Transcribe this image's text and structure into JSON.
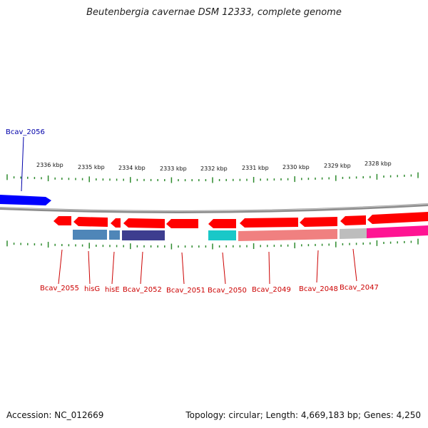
{
  "title": "Beutenbergia cavernae DSM 12333, complete genome",
  "footer": {
    "accession": "Accession: NC_012669",
    "info": "Topology: circular; Length: 4,669,183 bp; Genes: 4,250"
  },
  "colors": {
    "backbone": "#8c8c8c",
    "tick": "#2e8b2e",
    "gene_red": "#ff0000",
    "label_red": "#cc0000",
    "label_blue": "#0000aa",
    "blue_gene": "#0000ff",
    "steelblue": "#4f86b8",
    "navy": "#3d3d8f",
    "cyan": "#19c8c8",
    "salmon": "#f08080",
    "gray": "#bdbdbd",
    "magenta": "#ff1493"
  },
  "kbp_labels": [
    "2336 kbp",
    "2335 kbp",
    "2334 kbp",
    "2333 kbp",
    "2332 kbp",
    "2331 kbp",
    "2330 kbp",
    "2329 kbp",
    "2328 kbp"
  ],
  "gene_labels": {
    "top": [
      "Bcav_2056"
    ],
    "bottom": [
      "Bcav_2055",
      "hisG",
      "hisE",
      "Bcav_2052",
      "Bcav_2051",
      "Bcav_2050",
      "Bcav_2049",
      "Bcav_2048",
      "Bcav_2047"
    ]
  }
}
